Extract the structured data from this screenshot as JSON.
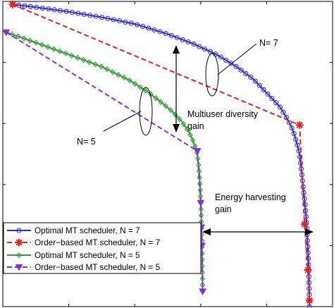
{
  "chart_data": {
    "type": "line",
    "title": "",
    "xlabel": "",
    "ylabel": "",
    "xlim": [
      0,
      1
    ],
    "ylim": [
      0,
      1
    ],
    "grid": false,
    "legend_position": "bottom-left",
    "series": [
      {
        "name": "Optimal MT scheduler, N = 7",
        "color": "#2a2ae8",
        "line_style": "solid",
        "marker": "circle",
        "x": [
          0.03,
          0.1,
          0.2,
          0.3,
          0.4,
          0.5,
          0.58,
          0.65,
          0.71,
          0.76,
          0.8,
          0.84,
          0.86,
          0.875,
          0.885,
          0.893,
          0.9,
          0.905,
          0.91,
          0.915,
          0.92,
          0.923,
          0.926,
          0.928,
          0.929,
          0.93
        ],
        "y": [
          0.99,
          0.981,
          0.966,
          0.948,
          0.926,
          0.893,
          0.86,
          0.825,
          0.785,
          0.745,
          0.7,
          0.655,
          0.62,
          0.59,
          0.56,
          0.53,
          0.5,
          0.45,
          0.4,
          0.35,
          0.29,
          0.23,
          0.17,
          0.11,
          0.05,
          0.0
        ]
      },
      {
        "name": "Order−based MT scheduler,  N = 7",
        "color": "#e8221c",
        "line_style": "dashed",
        "marker": "asterisk",
        "x": [
          0.03,
          0.9,
          0.915,
          0.925,
          0.93
        ],
        "y": [
          0.99,
          0.595,
          0.27,
          0.12,
          0.02
        ]
      },
      {
        "name": "Optimal MT scheduler, N = 5",
        "color": "#2e9c2e",
        "line_style": "solid",
        "marker": "diamond",
        "x": [
          0.01,
          0.1,
          0.2,
          0.3,
          0.38,
          0.44,
          0.48,
          0.515,
          0.54,
          0.56,
          0.572,
          0.583,
          0.59,
          0.595,
          0.598,
          0.6,
          0.602,
          0.604,
          0.606
        ],
        "y": [
          0.899,
          0.865,
          0.826,
          0.786,
          0.744,
          0.703,
          0.67,
          0.638,
          0.61,
          0.58,
          0.555,
          0.525,
          0.5,
          0.45,
          0.4,
          0.35,
          0.29,
          0.2,
          0.05
        ]
      },
      {
        "name": "Order−based MT scheduler, N = 5",
        "color": "#8a2be2",
        "line_style": "dashed",
        "marker": "triangle-down",
        "x": [
          0.01,
          0.59,
          0.6,
          0.602,
          0.604,
          0.606
        ],
        "y": [
          0.899,
          0.51,
          0.34,
          0.26,
          0.2,
          0.05
        ]
      }
    ],
    "annotations": [
      {
        "text": "N= 7"
      },
      {
        "text": "N= 5"
      },
      {
        "text": "Multiuser diversity"
      },
      {
        "text": "gain"
      },
      {
        "text": "Energy harvesting"
      },
      {
        "text": "gain"
      }
    ]
  }
}
